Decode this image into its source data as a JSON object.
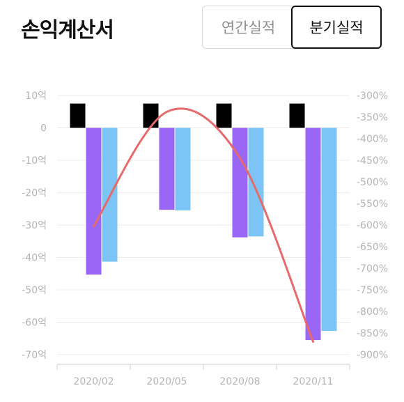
{
  "header": {
    "title": "손익계산서",
    "tabs": [
      {
        "label": "연간실적",
        "selected": false
      },
      {
        "label": "분기실적",
        "selected": true
      }
    ]
  },
  "colors": {
    "revenue_bar": "#000000",
    "operating_bar": "#9966f5",
    "net_bar": "#7dc4f6",
    "margin_line": "#e8696b",
    "axis_text": "#b4b4b4",
    "grid": "#ececec",
    "title": "#111111"
  },
  "chart_data": {
    "type": "bar",
    "categories": [
      "2020/02",
      "2020/05",
      "2020/08",
      "2020/11"
    ],
    "left_axis": {
      "ticks": [
        "10억",
        "0",
        "-10억",
        "-20억",
        "-30억",
        "-40억",
        "-50억",
        "-60억",
        "-70억"
      ],
      "tick_values": [
        10,
        0,
        -10,
        -20,
        -30,
        -40,
        -50,
        -60,
        -70
      ],
      "ylim": [
        -70,
        10
      ]
    },
    "right_axis": {
      "ticks": [
        "-300%",
        "-350%",
        "-400%",
        "-450%",
        "-500%",
        "-550%",
        "-600%",
        "-650%",
        "-700%",
        "-750%",
        "-800%",
        "-850%",
        "-900%"
      ],
      "tick_values": [
        -300,
        -350,
        -400,
        -450,
        -500,
        -550,
        -600,
        -650,
        -700,
        -750,
        -800,
        -850,
        -900
      ],
      "ylim": [
        -900,
        -300
      ]
    },
    "series": [
      {
        "values": [
          7.5,
          7.5,
          7.5,
          7.5
        ],
        "axis": "left",
        "kind": "bar",
        "color": "#000000"
      },
      {
        "values": [
          -45.3,
          -25.3,
          -33.8,
          -65.5
        ],
        "axis": "left",
        "kind": "bar",
        "color": "#9966f5"
      },
      {
        "values": [
          -41.3,
          -25.5,
          -33.5,
          -62.7
        ],
        "axis": "left",
        "kind": "bar",
        "color": "#7dc4f6"
      },
      {
        "values": [
          -603,
          -338,
          -445,
          -870
        ],
        "axis": "right",
        "kind": "line",
        "smooth": true,
        "color": "#e8696b"
      }
    ],
    "grid": true,
    "legend": "none"
  }
}
